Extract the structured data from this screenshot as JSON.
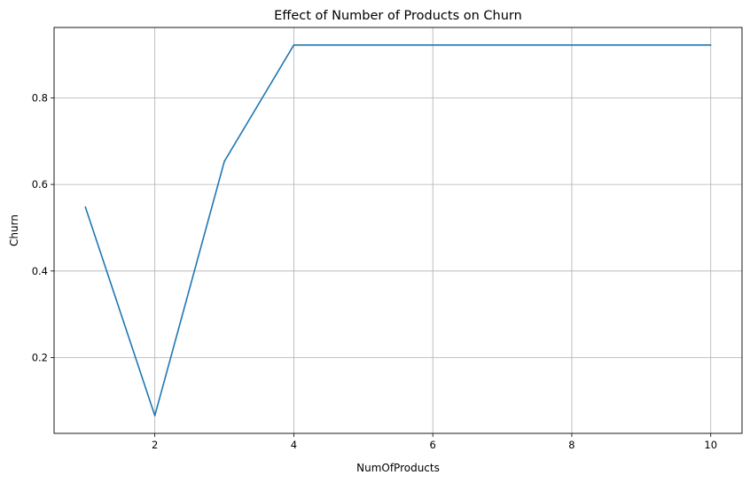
{
  "chart_data": {
    "type": "line",
    "title": "Effect of Number of Products on Churn",
    "xlabel": "NumOfProducts",
    "ylabel": "Churn",
    "xlim": [
      0.55,
      10.45
    ],
    "ylim": [
      0.025,
      0.9625
    ],
    "xticks": [
      2,
      4,
      6,
      8,
      10
    ],
    "yticks": [
      0.2,
      0.4,
      0.6,
      0.8
    ],
    "xtick_labels": [
      "2",
      "4",
      "6",
      "8",
      "10"
    ],
    "ytick_labels": [
      "0.2",
      "0.4",
      "0.6",
      "0.8"
    ],
    "grid": true,
    "series": [
      {
        "color": "#1f77b4",
        "x": [
          1,
          2,
          3,
          4,
          5,
          6,
          7,
          8,
          9,
          10
        ],
        "values": [
          0.548,
          0.066,
          0.653,
          0.922,
          0.922,
          0.922,
          0.922,
          0.922,
          0.922,
          0.922
        ]
      }
    ]
  }
}
